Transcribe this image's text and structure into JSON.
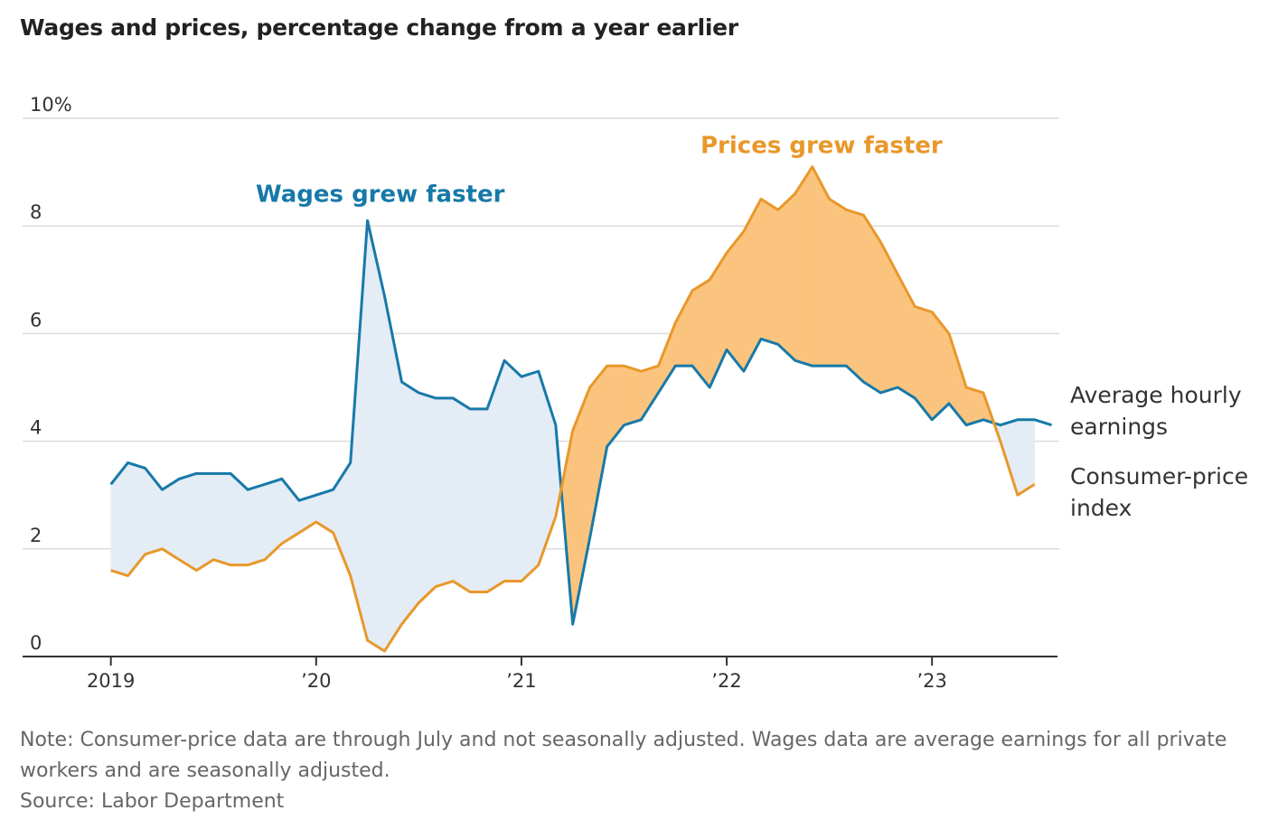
{
  "chart_data": {
    "type": "line",
    "title": "Wages and prices, percentage change from a year earlier",
    "x": [
      2019,
      2019.083,
      2019.167,
      2019.25,
      2019.333,
      2019.417,
      2019.5,
      2019.583,
      2019.667,
      2019.75,
      2019.833,
      2019.917,
      2020,
      2020.083,
      2020.167,
      2020.25,
      2020.333,
      2020.417,
      2020.5,
      2020.583,
      2020.667,
      2020.75,
      2020.833,
      2020.917,
      2021,
      2021.083,
      2021.167,
      2021.25,
      2021.333,
      2021.417,
      2021.5,
      2021.583,
      2021.667,
      2021.75,
      2021.833,
      2021.917,
      2022,
      2022.083,
      2022.167,
      2022.25,
      2022.333,
      2022.417,
      2022.5,
      2022.583,
      2022.667,
      2022.75,
      2022.833,
      2022.917,
      2023,
      2023.083,
      2023.167,
      2023.25,
      2023.333,
      2023.417,
      2023.5,
      2023.583
    ],
    "series": [
      {
        "name": "Average hourly earnings",
        "color": "#1779a8",
        "fill": "#e4ecf6",
        "values": [
          3.2,
          3.6,
          3.5,
          3.1,
          3.3,
          3.4,
          3.4,
          3.4,
          3.1,
          3.2,
          3.3,
          2.9,
          3.0,
          3.1,
          3.6,
          8.1,
          6.7,
          5.1,
          4.9,
          4.8,
          4.8,
          4.6,
          4.6,
          5.5,
          5.2,
          5.3,
          4.3,
          0.6,
          2.2,
          3.9,
          4.3,
          4.4,
          4.9,
          5.4,
          5.4,
          5.0,
          5.7,
          5.3,
          5.9,
          5.8,
          5.5,
          5.4,
          5.4,
          5.4,
          5.1,
          4.9,
          5.0,
          4.8,
          4.4,
          4.7,
          4.3,
          4.4,
          4.3,
          4.4,
          4.4,
          4.3
        ]
      },
      {
        "name": "Consumer-price index",
        "color": "#e8982a",
        "fill": "#fbc47e",
        "values": [
          1.6,
          1.5,
          1.9,
          2.0,
          1.8,
          1.6,
          1.8,
          1.7,
          1.7,
          1.8,
          2.1,
          2.3,
          2.5,
          2.3,
          1.5,
          0.3,
          0.1,
          0.6,
          1.0,
          1.3,
          1.4,
          1.2,
          1.2,
          1.4,
          1.4,
          1.7,
          2.6,
          4.2,
          5.0,
          5.4,
          5.4,
          5.3,
          5.4,
          6.2,
          6.8,
          7.0,
          7.5,
          7.9,
          8.5,
          8.3,
          8.6,
          9.1,
          8.5,
          8.3,
          8.2,
          7.7,
          7.1,
          6.5,
          6.4,
          6.0,
          5.0,
          4.9,
          4.0,
          3.0,
          3.2,
          null
        ]
      }
    ],
    "annotations": [
      {
        "text": "Wages grew faster",
        "color": "#1779a8"
      },
      {
        "text": "Prices grew faster",
        "color": "#e8982a"
      }
    ],
    "xlim": [
      2018.57,
      2023.62
    ],
    "xticks": [
      2019,
      {
        "value": 2020,
        "label": "’20"
      },
      {
        "value": 2021,
        "label": "’21"
      },
      {
        "value": 2022,
        "label": "’22"
      },
      {
        "value": 2023,
        "label": "’23"
      }
    ],
    "ylim": [
      0,
      10
    ],
    "yticks": [
      0,
      2,
      4,
      6,
      8,
      {
        "value": 10,
        "label": "10%"
      }
    ],
    "grid": true,
    "note": "Note: Consumer-price data are through July and not seasonally adjusted. Wages data are average earnings for all private workers and are seasonally adjusted.",
    "source": "Source: Labor Department"
  }
}
